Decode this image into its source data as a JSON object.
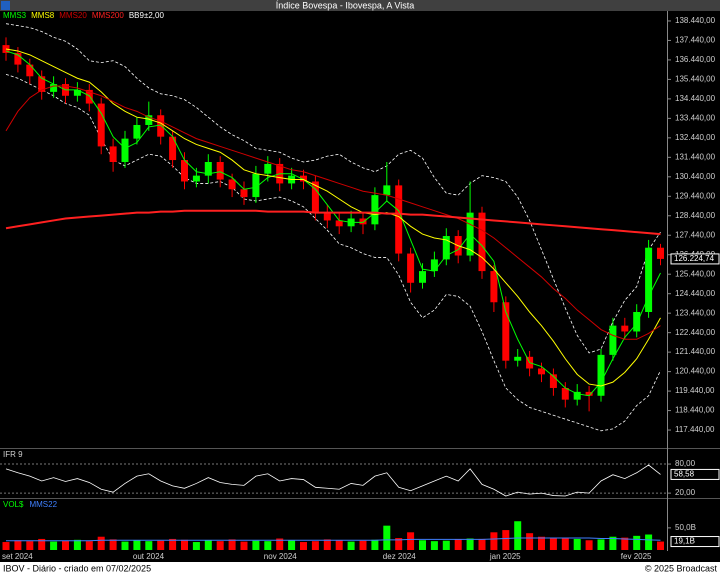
{
  "chart_data": [
    {
      "type": "candlestick",
      "title": "Índice Bovespa - Ibovespa, A Vista",
      "categories": [
        "set 2024",
        null,
        null,
        null,
        null,
        null,
        null,
        null,
        null,
        null,
        null,
        "out 2024",
        null,
        null,
        null,
        null,
        null,
        null,
        null,
        null,
        null,
        null,
        "nov 2024",
        null,
        null,
        null,
        null,
        null,
        null,
        null,
        null,
        null,
        "dez 2024",
        null,
        null,
        null,
        null,
        null,
        null,
        null,
        null,
        "jan 2025",
        null,
        null,
        null,
        null,
        null,
        null,
        null,
        null,
        null,
        null,
        "fev 2025",
        null,
        null,
        null
      ],
      "open": [
        137200,
        136800,
        136200,
        135600,
        134800,
        135200,
        134600,
        134900,
        134200,
        132000,
        131200,
        132400,
        133100,
        133600,
        132500,
        131300,
        130200,
        130500,
        131200,
        130300,
        129800,
        129400,
        130600,
        131100,
        130100,
        130500,
        130200,
        128600,
        128200,
        127900,
        128300,
        128000,
        129500,
        130000,
        126500,
        125000,
        125600,
        126200,
        127400,
        126400,
        128600,
        125600,
        124000,
        121000,
        121200,
        120600,
        120300,
        119600,
        119000,
        119400,
        119200,
        121300,
        122800,
        122500,
        123500,
        126800
      ],
      "high": [
        137600,
        137100,
        136500,
        135900,
        135600,
        135500,
        135300,
        135200,
        134500,
        132400,
        132800,
        133500,
        134300,
        133900,
        132800,
        131700,
        130900,
        131600,
        131500,
        130600,
        130200,
        131000,
        131500,
        131400,
        130900,
        130800,
        130500,
        129000,
        128600,
        128700,
        128600,
        129900,
        131200,
        130300,
        126800,
        126000,
        126600,
        127800,
        127700,
        130200,
        128900,
        125900,
        124300,
        121600,
        121500,
        120900,
        120600,
        119900,
        119800,
        119700,
        121600,
        123200,
        123200,
        123900,
        127200,
        127000
      ],
      "low": [
        136400,
        135800,
        135200,
        134400,
        134500,
        134200,
        134300,
        133800,
        131600,
        130700,
        130900,
        132100,
        132800,
        132100,
        130900,
        129800,
        129900,
        130100,
        129900,
        129400,
        129000,
        129100,
        130200,
        129700,
        129800,
        129800,
        128200,
        127800,
        127500,
        127600,
        127500,
        127700,
        129200,
        126100,
        124500,
        124700,
        125300,
        125900,
        126000,
        126100,
        125200,
        123500,
        120600,
        120700,
        120200,
        119900,
        119200,
        118600,
        118700,
        118400,
        118900,
        121000,
        122100,
        122200,
        123200,
        125900
      ],
      "close": [
        136800,
        136200,
        135600,
        134800,
        135200,
        134600,
        134900,
        134200,
        132000,
        131200,
        132400,
        133100,
        133600,
        132500,
        131300,
        130200,
        130500,
        131200,
        130300,
        129800,
        129400,
        130600,
        131100,
        130100,
        130500,
        130200,
        128600,
        128200,
        127900,
        128300,
        128000,
        129500,
        130000,
        126500,
        125000,
        125600,
        126200,
        127400,
        126400,
        128600,
        125600,
        124000,
        121000,
        121200,
        120600,
        120300,
        119600,
        119000,
        119400,
        119200,
        121300,
        122800,
        122500,
        123500,
        126800,
        126224.74
      ],
      "up_color": "#00ff00",
      "down_color": "#ff0000",
      "series": [
        {
          "name": "MMS3",
          "color": "#00ff00",
          "values": [
            136900,
            136700,
            136200,
            135500,
            135200,
            134900,
            134900,
            134600,
            133700,
            132500,
            131900,
            132200,
            133000,
            133100,
            132500,
            131300,
            130700,
            130600,
            130700,
            130400,
            129800,
            129900,
            130400,
            130600,
            130600,
            130300,
            129800,
            129000,
            128200,
            128100,
            128100,
            128600,
            129200,
            128700,
            127200,
            125700,
            125600,
            126400,
            126700,
            127500,
            126900,
            126100,
            123500,
            122100,
            120900,
            120700,
            120200,
            119600,
            119300,
            119200,
            119900,
            121100,
            122200,
            122900,
            124300,
            125500
          ]
        },
        {
          "name": "MMS8",
          "color": "#ffff00",
          "values": [
            137000,
            136900,
            136700,
            136400,
            136100,
            135800,
            135500,
            135300,
            134800,
            134200,
            133800,
            133500,
            133400,
            133200,
            132800,
            132400,
            132100,
            131900,
            131700,
            131300,
            130800,
            130600,
            130500,
            130400,
            130300,
            130300,
            130000,
            129700,
            129300,
            128900,
            128600,
            128500,
            128600,
            128400,
            127900,
            127500,
            127300,
            127200,
            126900,
            126700,
            126300,
            125700,
            125000,
            124300,
            123500,
            122800,
            122000,
            121100,
            120300,
            119800,
            119700,
            119900,
            120400,
            121100,
            122100,
            123200
          ]
        },
        {
          "name": "MMS20",
          "color": "#d00000",
          "values": [
            132800,
            133800,
            134500,
            134900,
            135100,
            135100,
            135000,
            134800,
            134600,
            134300,
            134000,
            133800,
            133500,
            133300,
            133000,
            132700,
            132400,
            132200,
            132000,
            131800,
            131600,
            131400,
            131200,
            131000,
            130800,
            130700,
            130500,
            130300,
            130100,
            129900,
            129700,
            129600,
            129500,
            129300,
            129100,
            128900,
            128700,
            128500,
            128300,
            128000,
            127700,
            127300,
            126800,
            126300,
            125800,
            125300,
            124700,
            124200,
            123600,
            123100,
            122600,
            122300,
            122100,
            122100,
            122400,
            122800
          ]
        },
        {
          "name": "MMS200",
          "color": "#ff2020",
          "values": [
            127800,
            127900,
            128000,
            128100,
            128200,
            128300,
            128350,
            128400,
            128450,
            128500,
            128550,
            128600,
            128600,
            128650,
            128650,
            128700,
            128700,
            128700,
            128700,
            128700,
            128700,
            128700,
            128650,
            128650,
            128650,
            128650,
            128600,
            128600,
            128600,
            128600,
            128600,
            128600,
            128550,
            128550,
            128500,
            128500,
            128450,
            128400,
            128350,
            128300,
            128250,
            128200,
            128150,
            128100,
            128050,
            128000,
            127950,
            127900,
            127850,
            127800,
            127750,
            127700,
            127650,
            127600,
            127550,
            127500
          ]
        }
      ],
      "bands": {
        "name": "BB9±2,00",
        "color": "#ffffff",
        "upper": [
          138300,
          138200,
          138100,
          137900,
          137600,
          137400,
          137000,
          136400,
          136300,
          136400,
          136100,
          135500,
          135000,
          134700,
          134600,
          134400,
          134000,
          133500,
          133000,
          132600,
          132300,
          131900,
          131800,
          131700,
          131400,
          131200,
          131300,
          131500,
          131600,
          131200,
          130900,
          130700,
          131000,
          131600,
          131800,
          131400,
          130400,
          129600,
          129500,
          130100,
          130500,
          130400,
          130200,
          129400,
          128200,
          126700,
          125200,
          123700,
          122300,
          121400,
          121600,
          123000,
          124100,
          124800,
          126700,
          127600
        ],
        "lower": [
          135700,
          135500,
          135200,
          134900,
          134600,
          134200,
          134000,
          133600,
          132400,
          131300,
          131000,
          131300,
          131600,
          131500,
          131000,
          130400,
          130100,
          130100,
          130200,
          129900,
          129300,
          129200,
          129300,
          129400,
          129200,
          128900,
          128300,
          127700,
          127000,
          126800,
          126500,
          126300,
          126300,
          125400,
          124000,
          123200,
          123600,
          124400,
          124300,
          123800,
          122500,
          121000,
          119600,
          119000,
          118600,
          118400,
          118200,
          118000,
          117800,
          117600,
          117400,
          117500,
          117900,
          118700,
          119200,
          120500
        ]
      },
      "price_label": {
        "value": 126224.74,
        "label": "126.224,74"
      },
      "ylim": [
        116570,
        138900
      ],
      "yticks": [
        {
          "value": 117440,
          "label": "117.440,00"
        },
        {
          "value": 118440,
          "label": "118.440,00"
        },
        {
          "value": 119440,
          "label": "119.440,00"
        },
        {
          "value": 120440,
          "label": "120.440,00"
        },
        {
          "value": 121440,
          "label": "121.440,00"
        },
        {
          "value": 122440,
          "label": "122.440,00"
        },
        {
          "value": 123440,
          "label": "123.440,00"
        },
        {
          "value": 124440,
          "label": "124.440,00"
        },
        {
          "value": 125440,
          "label": "125.440,00"
        },
        {
          "value": 126440,
          "label": "126.440,00"
        },
        {
          "value": 127440,
          "label": "127.440,00"
        },
        {
          "value": 128440,
          "label": "128.440,00"
        },
        {
          "value": 129440,
          "label": "129.440,00"
        },
        {
          "value": 130440,
          "label": "130.440,00"
        },
        {
          "value": 131440,
          "label": "131.440,00"
        },
        {
          "value": 132440,
          "label": "132.440,00"
        },
        {
          "value": 133440,
          "label": "133.440,00"
        },
        {
          "value": 134440,
          "label": "134.440,00"
        },
        {
          "value": 135440,
          "label": "135.440,00"
        },
        {
          "value": 136440,
          "label": "136.440,00"
        },
        {
          "value": 137440,
          "label": "137.440,00"
        },
        {
          "value": 138440,
          "label": "138.440,00"
        }
      ]
    },
    {
      "type": "line",
      "title": "IFR 9",
      "series": [
        {
          "name": "IFR 9",
          "color": "#ffffff",
          "values": [
            70,
            62,
            55,
            45,
            52,
            44,
            50,
            42,
            28,
            22,
            40,
            55,
            60,
            45,
            35,
            30,
            40,
            52,
            42,
            38,
            36,
            55,
            60,
            45,
            50,
            48,
            32,
            30,
            28,
            40,
            36,
            55,
            62,
            32,
            25,
            35,
            45,
            55,
            45,
            70,
            38,
            28,
            14,
            22,
            18,
            20,
            15,
            14,
            22,
            20,
            45,
            58,
            50,
            62,
            78,
            58.58
          ]
        }
      ],
      "value_label": {
        "value": 58.58,
        "label": "58,58"
      },
      "ylim": [
        12,
        109
      ],
      "yticks": [
        {
          "value": 20,
          "label": "20,00"
        },
        {
          "value": 80,
          "label": "80,00"
        }
      ]
    },
    {
      "type": "bar",
      "series": [
        {
          "name": "VOL$",
          "color": "#00ff00",
          "values": [
            18,
            22,
            20,
            25,
            19,
            21,
            23,
            20,
            30,
            24,
            19,
            22,
            20,
            21,
            25,
            23,
            18,
            22,
            20,
            24,
            19,
            21,
            20,
            26,
            22,
            18,
            20,
            24,
            22,
            19,
            21,
            23,
            55,
            27,
            40,
            22,
            20,
            21,
            24,
            26,
            25,
            40,
            45,
            65,
            38,
            30,
            28,
            26,
            25,
            22,
            24,
            30,
            28,
            32,
            35,
            19.1
          ]
        },
        {
          "name": "MMS22",
          "color": "#4080ff",
          "values": [
            21,
            21,
            21,
            21,
            21,
            21,
            21,
            21,
            22,
            22,
            22,
            22,
            22,
            22,
            22,
            22,
            22,
            22,
            22,
            22,
            22,
            22,
            22,
            22,
            22,
            22,
            22,
            22,
            22,
            22,
            22,
            22,
            23,
            23,
            24,
            24,
            24,
            24,
            24,
            24,
            24,
            25,
            26,
            27,
            27,
            27,
            27,
            27,
            27,
            27,
            26,
            26,
            25,
            24,
            23,
            22
          ]
        }
      ],
      "value_label": {
        "value": 19.1,
        "label": "19,1B"
      },
      "ylim": [
        0,
        113
      ],
      "yticks": [
        {
          "value": 50,
          "label": "50,0B"
        }
      ]
    }
  ],
  "footer": {
    "left": "IBOV - Diário - criado em 07/02/2025",
    "right": "© 2025 Broadcast"
  }
}
